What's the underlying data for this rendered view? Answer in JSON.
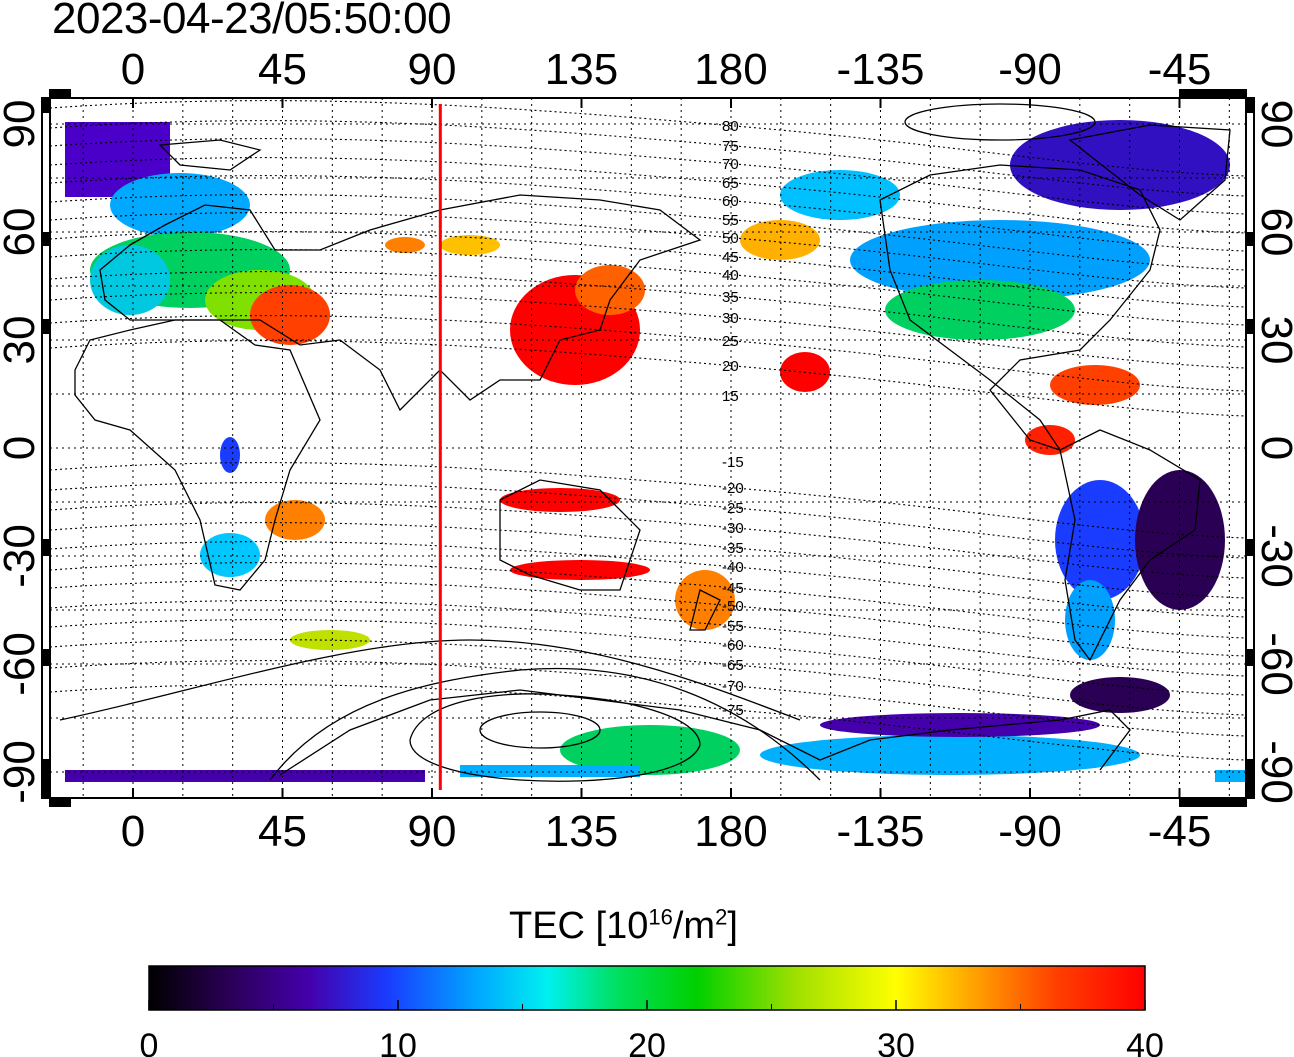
{
  "title": "2023-04-23/05:50:00",
  "map": {
    "lon_ticks_top": [
      "0",
      "45",
      "90",
      "135",
      "180",
      "-135",
      "-90",
      "-45"
    ],
    "lon_ticks_bottom": [
      "0",
      "45",
      "90",
      "135",
      "180",
      "-135",
      "-90",
      "-45"
    ],
    "lat_ticks_left": [
      "90",
      "60",
      "30",
      "0",
      "-30",
      "-60",
      "-90"
    ],
    "lat_ticks_right": [
      "90",
      "60",
      "30",
      "0",
      "-30",
      "-60",
      "-90"
    ],
    "magnetic_latitude_labels": [
      "80",
      "75",
      "70",
      "65",
      "60",
      "55",
      "50",
      "45",
      "40",
      "35",
      "30",
      "25",
      "20",
      "15",
      "-15",
      "-20",
      "-25",
      "-30",
      "-35",
      "-40",
      "-45",
      "-50",
      "-55",
      "-60",
      "-65",
      "-70",
      "-75"
    ],
    "subsolar_longitude": 92.5,
    "colors": {
      "terminator_line": "#ff0000",
      "grid": "#000000"
    }
  },
  "colorbar": {
    "label_main": "TEC  [10",
    "label_exp": "16",
    "label_unit": "/m",
    "label_exp2": "2",
    "label_end": "]",
    "ticks": [
      "0",
      "10",
      "20",
      "30",
      "40"
    ],
    "min": 0,
    "max": 40,
    "colormap": [
      "#000000",
      "#2a0055",
      "#4400aa",
      "#1a3cff",
      "#00a8ff",
      "#00f0f0",
      "#00e060",
      "#00d000",
      "#a0e000",
      "#ffff00",
      "#ffa000",
      "#ff4000",
      "#ff0000"
    ]
  }
}
